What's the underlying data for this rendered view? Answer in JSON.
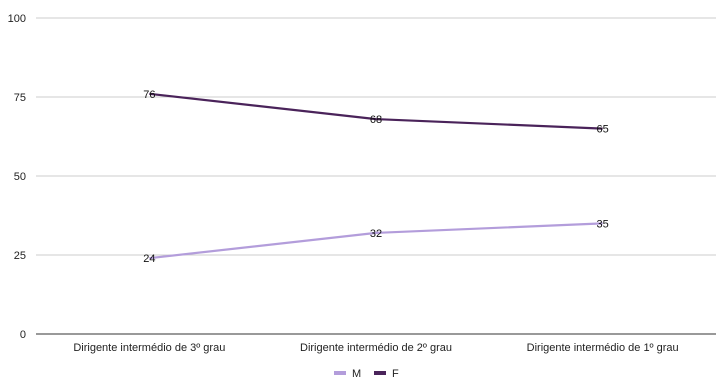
{
  "chart_data": {
    "type": "line",
    "categories": [
      "Dirigente intermédio de 3º grau",
      "Dirigente intermédio de 2º grau",
      "Dirigente intermédio de 1º grau"
    ],
    "series": [
      {
        "name": "M",
        "values": [
          24,
          32,
          35
        ],
        "color": "#b39ddb"
      },
      {
        "name": "F",
        "values": [
          76,
          68,
          65
        ],
        "color": "#4a235a"
      }
    ],
    "ylim": [
      0,
      100
    ],
    "yticks": [
      0,
      25,
      50,
      75,
      100
    ],
    "grid": true,
    "legend_position": "bottom",
    "title": "",
    "xlabel": "",
    "ylabel": ""
  }
}
